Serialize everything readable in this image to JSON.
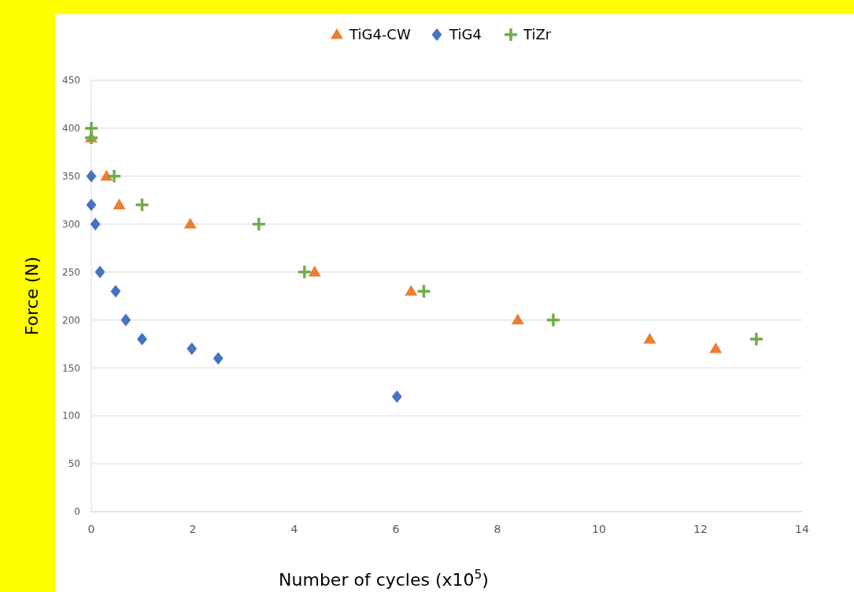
{
  "chart_data": {
    "type": "scatter",
    "xlabel": "Number of cycles (x10$^{5}$)",
    "ylabel": "Force (N)",
    "xlim": [
      0,
      14
    ],
    "ylim": [
      0,
      450
    ],
    "xticks": [
      0,
      2,
      4,
      6,
      8,
      10,
      12,
      14
    ],
    "yticks": [
      0,
      50,
      100,
      150,
      200,
      250,
      300,
      350,
      400,
      450
    ],
    "grid": "y",
    "legend": "top",
    "series": [
      {
        "name": "TiG4-CW",
        "color": "#ed7d31",
        "marker": "triangle",
        "x": [
          0,
          0.3,
          0.55,
          1.95,
          4.4,
          6.3,
          8.4,
          11,
          12.3
        ],
        "values": [
          390,
          350,
          320,
          300,
          250,
          230,
          200,
          180,
          170
        ]
      },
      {
        "name": "TiG4",
        "color": "#4472c4",
        "marker": "diamond",
        "x": [
          0,
          0,
          0.08,
          0.17,
          0.48,
          0.68,
          1,
          1.98,
          2.5,
          6.02
        ],
        "values": [
          350,
          320,
          300,
          250,
          230,
          200,
          180,
          170,
          160,
          120
        ]
      },
      {
        "name": "TiZr",
        "color": "#70ad47",
        "marker": "cross",
        "x": [
          0,
          0,
          0.45,
          1,
          3.3,
          4.2,
          6.55,
          9.1,
          13.1
        ],
        "values": [
          400,
          390,
          350,
          320,
          300,
          250,
          230,
          200,
          180
        ]
      }
    ]
  }
}
